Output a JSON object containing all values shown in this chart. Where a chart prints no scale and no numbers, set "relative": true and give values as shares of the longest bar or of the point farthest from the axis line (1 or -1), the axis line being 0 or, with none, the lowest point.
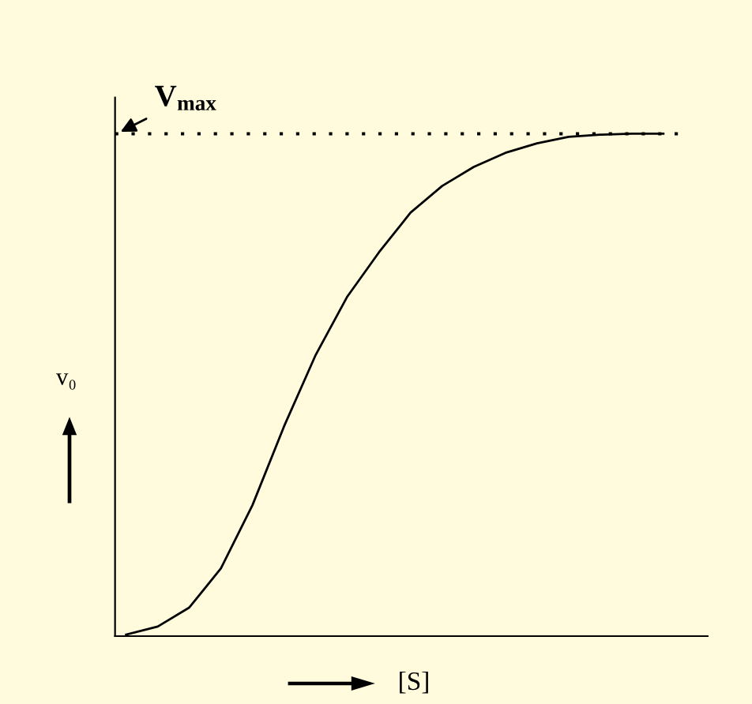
{
  "chart_data": {
    "type": "line",
    "relative": true,
    "xlabel": "[S]",
    "ylabel": "v₀",
    "color": "#000000",
    "categories": [
      null,
      null,
      null,
      null,
      null,
      null,
      null,
      null,
      null,
      null,
      null,
      null,
      null,
      null,
      null,
      null,
      null,
      null
    ],
    "values": [
      0.003,
      0.019,
      0.057,
      0.135,
      0.261,
      0.418,
      0.56,
      0.676,
      0.764,
      0.843,
      0.896,
      0.934,
      0.962,
      0.981,
      0.994,
      0.998,
      1.0,
      1.0
    ],
    "ref_lines": [
      {
        "axis": "y",
        "value": 1.0,
        "label": "V$_{max}$",
        "color": "#000000",
        "line_style": "dotted"
      }
    ],
    "legend": false,
    "marker": "none",
    "line_style": "solid"
  }
}
